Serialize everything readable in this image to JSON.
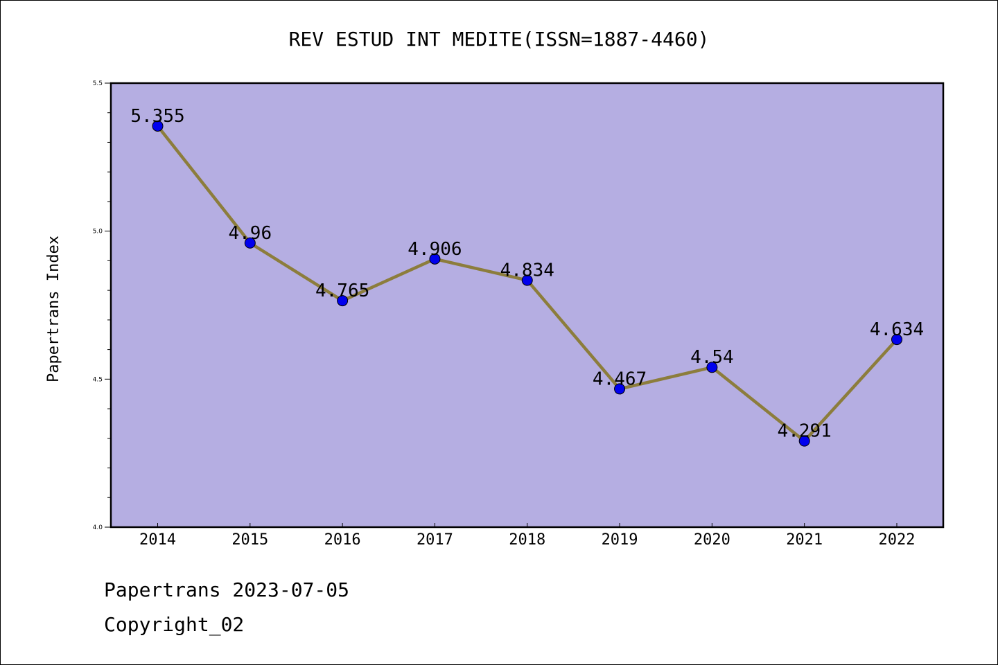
{
  "chart_data": {
    "type": "line",
    "title": "REV ESTUD INT MEDITE(ISSN=1887-4460)",
    "xlabel": "",
    "ylabel": "Papertrans Index",
    "categories": [
      "2014",
      "2015",
      "2016",
      "2017",
      "2018",
      "2019",
      "2020",
      "2021",
      "2022"
    ],
    "values": [
      5.355,
      4.96,
      4.765,
      4.906,
      4.834,
      4.467,
      4.54,
      4.291,
      4.634
    ],
    "data_labels": [
      "5.355",
      "4.96",
      "4.765",
      "4.906",
      "4.834",
      "4.467",
      "4.54",
      "4.291",
      "4.634"
    ],
    "ylim": [
      4.0,
      5.5
    ],
    "yticks": [
      "4.0",
      "4.5",
      "5.0",
      "5.5"
    ],
    "grid": false,
    "colors": {
      "plot_background": "#b5aee2",
      "line": "#8c7d3c",
      "marker": "#0000ee",
      "axis": "#000000"
    }
  },
  "footer": {
    "date_text": "Papertrans 2023-07-05",
    "copyright_text": "Copyright_02"
  }
}
